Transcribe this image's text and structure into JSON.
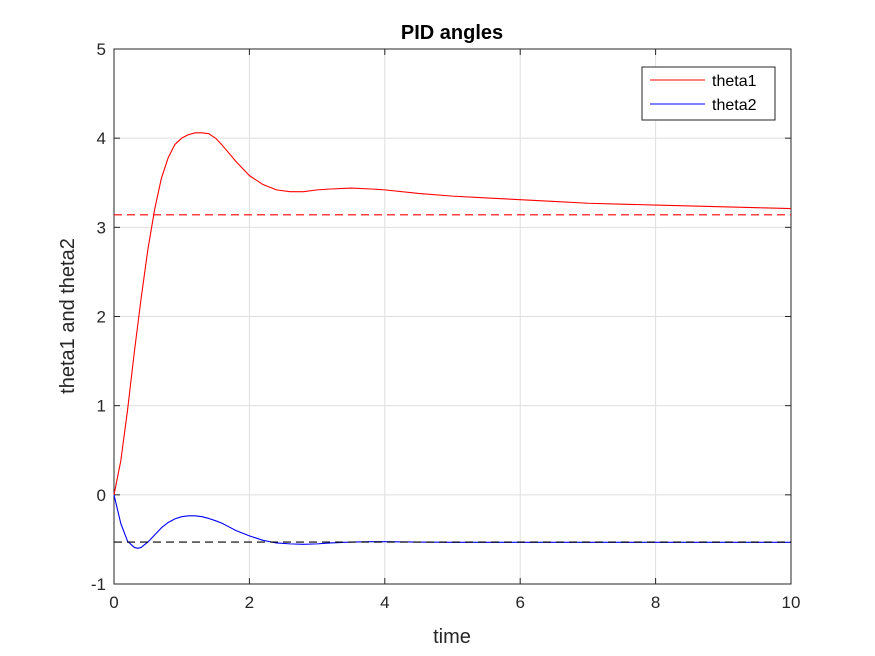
{
  "chart_data": {
    "type": "line",
    "title": "PID angles",
    "xlabel": "time",
    "ylabel": "theta1 and theta2",
    "xlim": [
      0,
      10
    ],
    "ylim": [
      -1,
      5
    ],
    "xticks": [
      0,
      2,
      4,
      6,
      8,
      10
    ],
    "yticks": [
      -1,
      0,
      1,
      2,
      3,
      4,
      5
    ],
    "xtick_labels": [
      "0",
      "2",
      "4",
      "6",
      "8",
      "10"
    ],
    "ytick_labels": [
      "-1",
      "0",
      "1",
      "2",
      "3",
      "4",
      "5"
    ],
    "grid": true,
    "legend_position": "top-right",
    "series": [
      {
        "name": "theta1",
        "color": "#ff0000",
        "style": "solid",
        "x": [
          0,
          0.1,
          0.2,
          0.3,
          0.4,
          0.5,
          0.6,
          0.7,
          0.8,
          0.9,
          1.0,
          1.1,
          1.2,
          1.3,
          1.4,
          1.5,
          1.6,
          1.7,
          1.8,
          1.9,
          2.0,
          2.2,
          2.4,
          2.6,
          2.8,
          3.0,
          3.2,
          3.5,
          3.8,
          4.0,
          4.5,
          5.0,
          5.5,
          6.0,
          6.5,
          7.0,
          7.5,
          8.0,
          8.5,
          9.0,
          9.5,
          10.0
        ],
        "y": [
          0,
          0.38,
          0.95,
          1.6,
          2.2,
          2.75,
          3.2,
          3.55,
          3.78,
          3.93,
          4.0,
          4.04,
          4.06,
          4.06,
          4.05,
          4.0,
          3.92,
          3.83,
          3.74,
          3.66,
          3.58,
          3.48,
          3.42,
          3.4,
          3.4,
          3.42,
          3.43,
          3.44,
          3.43,
          3.42,
          3.38,
          3.35,
          3.33,
          3.31,
          3.29,
          3.27,
          3.26,
          3.25,
          3.24,
          3.23,
          3.22,
          3.21
        ]
      },
      {
        "name": "theta2",
        "color": "#0000ff",
        "style": "solid",
        "x": [
          0,
          0.1,
          0.2,
          0.3,
          0.35,
          0.4,
          0.5,
          0.6,
          0.7,
          0.8,
          0.9,
          1.0,
          1.1,
          1.2,
          1.3,
          1.4,
          1.5,
          1.6,
          1.7,
          1.8,
          2.0,
          2.2,
          2.4,
          2.6,
          2.8,
          3.0,
          3.2,
          3.5,
          3.8,
          4.0,
          4.5,
          5.0,
          6.0,
          7.0,
          8.0,
          9.0,
          10.0
        ],
        "y": [
          0,
          -0.32,
          -0.52,
          -0.59,
          -0.6,
          -0.59,
          -0.53,
          -0.45,
          -0.37,
          -0.31,
          -0.27,
          -0.245,
          -0.235,
          -0.235,
          -0.245,
          -0.265,
          -0.29,
          -0.32,
          -0.36,
          -0.4,
          -0.46,
          -0.51,
          -0.54,
          -0.55,
          -0.555,
          -0.55,
          -0.54,
          -0.53,
          -0.525,
          -0.525,
          -0.53,
          -0.532,
          -0.533,
          -0.533,
          -0.533,
          -0.533,
          -0.533
        ]
      },
      {
        "color": "#ff0000",
        "style": "dashed",
        "x": [
          0,
          10
        ],
        "y": [
          3.14,
          3.14
        ]
      },
      {
        "color": "#000000",
        "style": "dashed",
        "x": [
          0,
          10
        ],
        "y": [
          -0.53,
          -0.53
        ]
      }
    ]
  }
}
